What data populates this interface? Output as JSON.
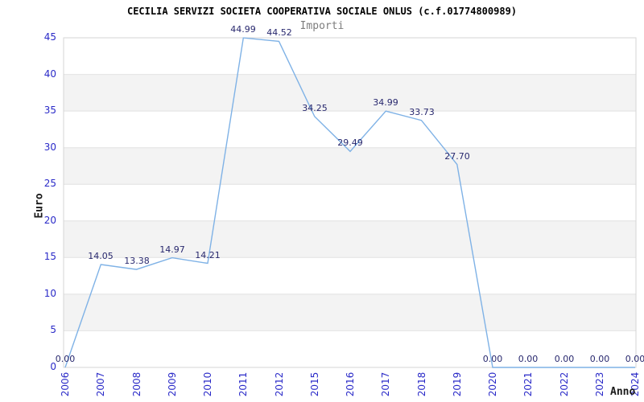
{
  "chart_data": {
    "type": "line",
    "title": "CECILIA SERVIZI SOCIETA COOPERATIVA SOCIALE ONLUS (c.f.01774800989)",
    "subtitle": "Importi",
    "xlabel": "Anno",
    "ylabel": "Euro",
    "categories": [
      "2006",
      "2007",
      "2008",
      "2009",
      "2010",
      "2011",
      "2012",
      "2015",
      "2016",
      "2017",
      "2018",
      "2019",
      "2020",
      "2021",
      "2022",
      "2023",
      "2024"
    ],
    "series": [
      {
        "name": "Importi",
        "values": [
          0.0,
          14.05,
          13.38,
          14.97,
          14.21,
          44.99,
          44.52,
          34.25,
          29.49,
          34.99,
          33.73,
          27.7,
          0.0,
          0.0,
          0.0,
          0.0,
          0.0
        ]
      }
    ],
    "ylim": [
      0,
      45
    ],
    "ytick_step": 5,
    "yticks": [
      0,
      5,
      10,
      15,
      20,
      25,
      30,
      35,
      40,
      45
    ],
    "data_label_format": "two-decimals",
    "legend_position": "top-center",
    "grid": "alternating-horizontal-bands",
    "colors": {
      "line": "#7fb2e6",
      "tick_label": "#2a2ac8",
      "data_label": "#28286e",
      "band": "#f3f3f3",
      "grid_line": "#e2e2e2",
      "plot_border": "#d5d5d5",
      "title": "#000000",
      "subtitle": "#7d7d7d",
      "axis_title": "#1a1a1a",
      "background": "#ffffff"
    }
  }
}
